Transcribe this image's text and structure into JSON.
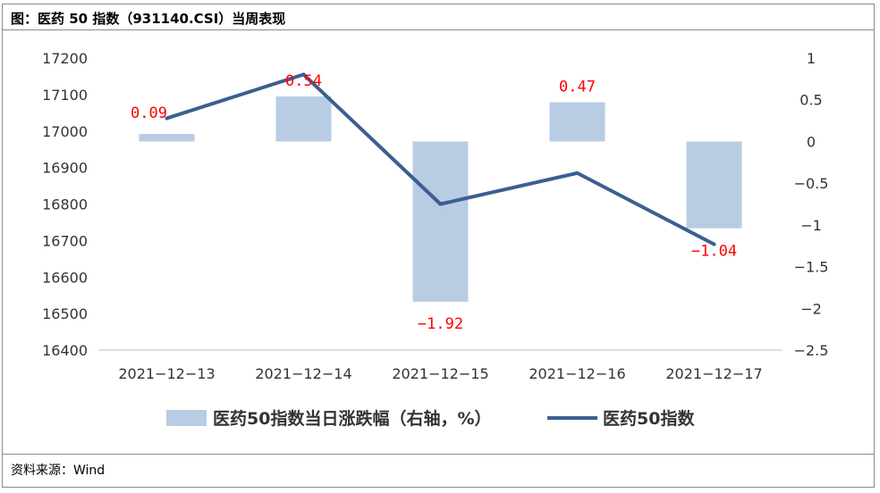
{
  "header": {
    "title": "图：医药 50 指数（931140.CSI）当周表现"
  },
  "footer": {
    "source": "资料来源：Wind"
  },
  "colors": {
    "bar": "#b8cce4",
    "line": "#3b5f8f",
    "label": "#ff0000",
    "axis": "#bfbfbf"
  },
  "chart_data": {
    "type": "bar+line",
    "categories": [
      "2021-12-13",
      "2021-12-14",
      "2021-12-15",
      "2021-12-16",
      "2021-12-17"
    ],
    "series": [
      {
        "name": "医药50指数当日涨跌幅（右轴，%）",
        "type": "bar",
        "axis": "right",
        "values": [
          0.09,
          0.54,
          -1.92,
          0.47,
          -1.04
        ],
        "data_labels": [
          "0.09",
          "0.54",
          "−1.92",
          "0.47",
          "−1.04"
        ]
      },
      {
        "name": "医药50指数",
        "type": "line",
        "axis": "left",
        "values": [
          17035,
          17155,
          16800,
          16885,
          16690
        ]
      }
    ],
    "y_left": {
      "min": 16400,
      "max": 17200,
      "step": 100,
      "ticks": [
        "17200",
        "17100",
        "17000",
        "16900",
        "16800",
        "16700",
        "16600",
        "16500",
        "16400"
      ]
    },
    "y_right": {
      "min": -2.5,
      "max": 1,
      "step": 0.5,
      "ticks": [
        "1",
        "0.5",
        "0",
        "−0.5",
        "−1",
        "−1.5",
        "−2",
        "−2.5"
      ]
    },
    "x_ticks": [
      "2021−12−13",
      "2021−12−14",
      "2021−12−15",
      "2021−12−16",
      "2021−12−17"
    ],
    "legend_position": "bottom",
    "grid": false
  }
}
